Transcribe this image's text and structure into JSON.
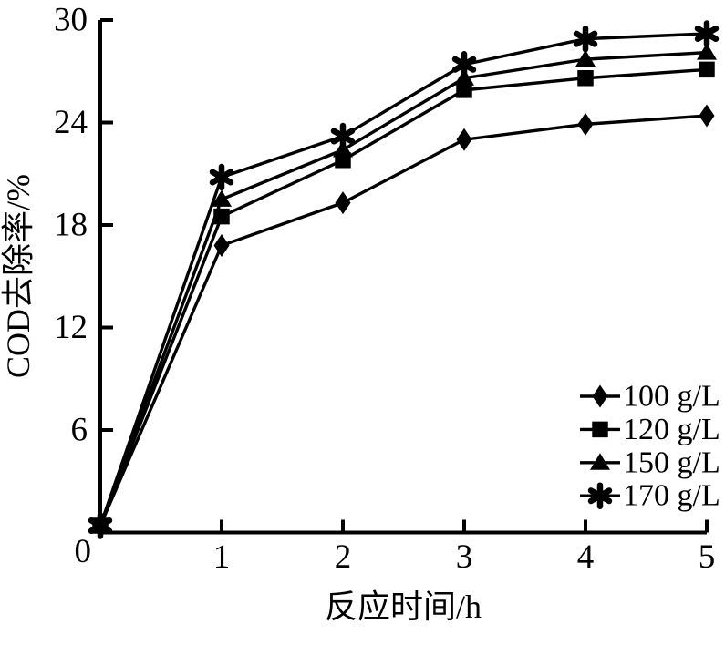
{
  "figure": {
    "background": "#ffffff",
    "ink": "#000000"
  },
  "chart_data": {
    "type": "line",
    "title": "",
    "xlabel": "反应时间/h",
    "ylabel": "COD去除率/%",
    "xlim": [
      0,
      5
    ],
    "ylim": [
      0,
      30
    ],
    "x_ticks": [
      1,
      2,
      3,
      4,
      5
    ],
    "y_ticks": [
      0,
      6,
      12,
      18,
      24,
      30
    ],
    "origin_label": "0",
    "grid": false,
    "legend_position": "lower right",
    "x": [
      0,
      1,
      2,
      3,
      4,
      5
    ],
    "series": [
      {
        "name": "100 g/L",
        "marker": "diamond",
        "color": "#000000",
        "values": [
          0.4,
          16.8,
          19.3,
          23.0,
          23.9,
          24.4
        ]
      },
      {
        "name": "120 g/L",
        "marker": "square",
        "color": "#000000",
        "values": [
          0.4,
          18.5,
          21.8,
          25.9,
          26.6,
          27.1
        ]
      },
      {
        "name": "150 g/L",
        "marker": "triangle",
        "color": "#000000",
        "values": [
          0.4,
          19.5,
          22.4,
          26.6,
          27.7,
          28.1
        ]
      },
      {
        "name": "170 g/L",
        "marker": "asterisk",
        "color": "#000000",
        "values": [
          0.4,
          20.8,
          23.2,
          27.4,
          28.9,
          29.2
        ]
      }
    ]
  }
}
